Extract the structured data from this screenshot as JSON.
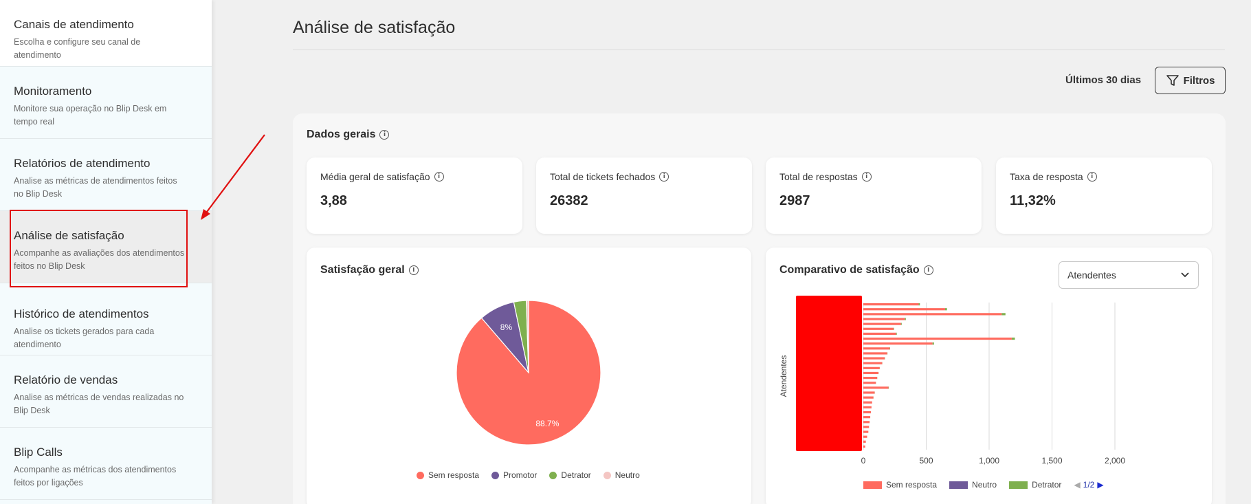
{
  "sidebar": {
    "items": [
      {
        "title": "Canais de atendimento",
        "desc": "Escolha e configure seu canal de atendimento"
      },
      {
        "title": "Monitoramento",
        "desc": "Monitore sua operação no Blip Desk em tempo real"
      },
      {
        "title": "Relatórios de atendimento",
        "desc": "Analise as métricas de atendimentos feitos no Blip Desk"
      },
      {
        "title": "Análise de satisfação",
        "desc": "Acompanhe as avaliações dos atendimentos feitos no Blip Desk"
      },
      {
        "title": "Histórico de atendimentos",
        "desc": "Analise os tickets gerados para cada atendimento"
      },
      {
        "title": "Relatório de vendas",
        "desc": "Analise as métricas de vendas realizadas no Blip Desk"
      },
      {
        "title": "Blip Calls",
        "desc": "Acompanhe as métricas dos atendimentos feitos por ligações"
      }
    ]
  },
  "page": {
    "title": "Análise de satisfação"
  },
  "filters": {
    "period": "Últimos 30 dias",
    "button_label": "Filtros"
  },
  "general": {
    "title": "Dados gerais",
    "kpis": [
      {
        "label": "Média geral de satisfação",
        "value": "3,88"
      },
      {
        "label": "Total de tickets fechados",
        "value": "26382"
      },
      {
        "label": "Total de respostas",
        "value": "2987"
      },
      {
        "label": "Taxa de resposta",
        "value": "11,32%"
      }
    ]
  },
  "satisfaction": {
    "title": "Satisfação geral",
    "legend": [
      "Sem resposta",
      "Promotor",
      "Detrator",
      "Neutro"
    ]
  },
  "comparison": {
    "title": "Comparativo de satisfação",
    "select_value": "Atendentes",
    "legend": [
      "Sem resposta",
      "Neutro",
      "Detrator"
    ],
    "pager": "1/2"
  },
  "colors": {
    "sem_resposta": "#ff6b5f",
    "promotor": "#6f5a99",
    "detrator": "#7fb04f",
    "neutro": "#f4c6c3",
    "annotation": "#e01010"
  },
  "chart_data": [
    {
      "type": "pie",
      "title": "Satisfação geral",
      "categories": [
        "Sem resposta",
        "Promotor",
        "Detrator",
        "Neutro"
      ],
      "values": [
        88.7,
        8,
        2.8,
        0.5
      ],
      "data_labels": [
        "88.7%",
        "8%",
        "",
        ""
      ],
      "legend": "bottom"
    },
    {
      "type": "bar",
      "orientation": "horizontal",
      "title": "Comparativo de satisfação",
      "ylabel": "Atendentes",
      "xlim": [
        0,
        2000
      ],
      "x_ticks": [
        "0",
        "500",
        "1,000",
        "1,500",
        "2,000"
      ],
      "legend": "bottom",
      "series": [
        {
          "name": "Sem resposta",
          "values": [
            440,
            650,
            1100,
            330,
            300,
            240,
            260,
            1180,
            550,
            210,
            190,
            170,
            150,
            130,
            120,
            110,
            100,
            200,
            90,
            80,
            70,
            65,
            60,
            55,
            50,
            45,
            40,
            30,
            20,
            15
          ]
        },
        {
          "name": "Neutro",
          "values": [
            0,
            0,
            0,
            0,
            0,
            0,
            0,
            0,
            0,
            0,
            0,
            0,
            0,
            0,
            0,
            0,
            0,
            0,
            0,
            0,
            0,
            0,
            0,
            0,
            0,
            0,
            0,
            0,
            0,
            0
          ]
        },
        {
          "name": "Detrator",
          "values": [
            10,
            15,
            30,
            8,
            5,
            4,
            6,
            25,
            12,
            3,
            2,
            2,
            1,
            1,
            1,
            1,
            1,
            3,
            1,
            1,
            0,
            0,
            0,
            0,
            0,
            0,
            0,
            0,
            0,
            0
          ]
        }
      ],
      "grid": true
    }
  ]
}
